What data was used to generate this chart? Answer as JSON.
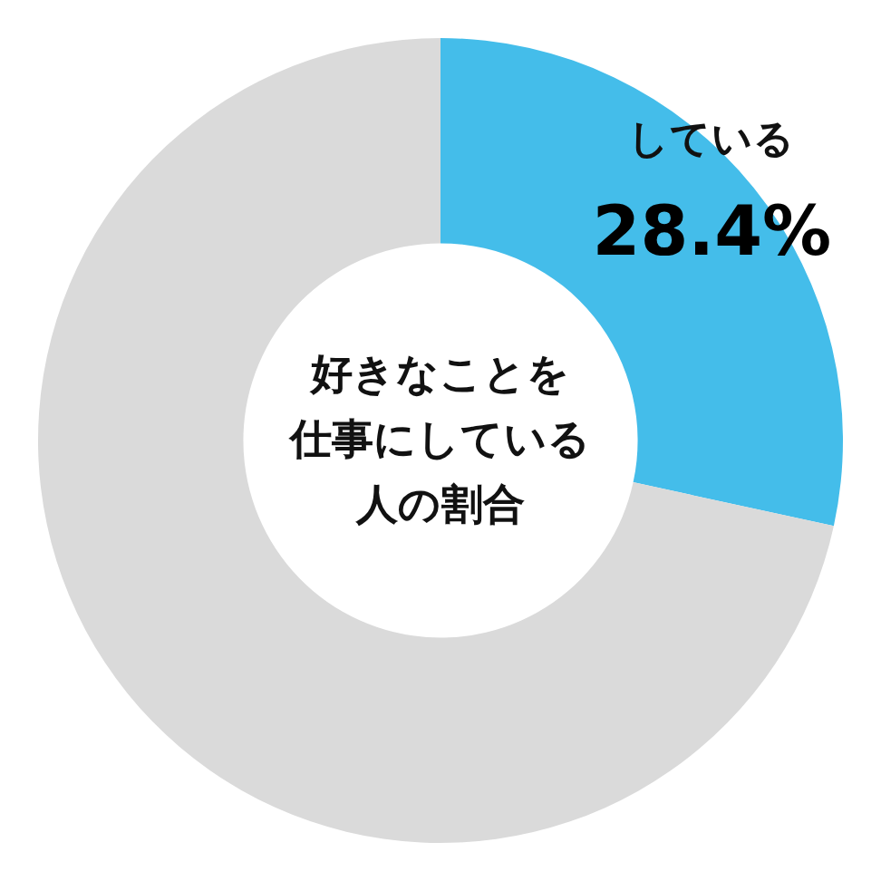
{
  "chart_data": {
    "type": "donut",
    "title": "好きなことを仕事にしている人の割合",
    "categories": [
      "している",
      null
    ],
    "values": [
      28.4,
      71.6
    ],
    "colors": [
      "#44bdea",
      "#dadada"
    ],
    "value_labels": [
      "28.4%",
      null
    ]
  }
}
